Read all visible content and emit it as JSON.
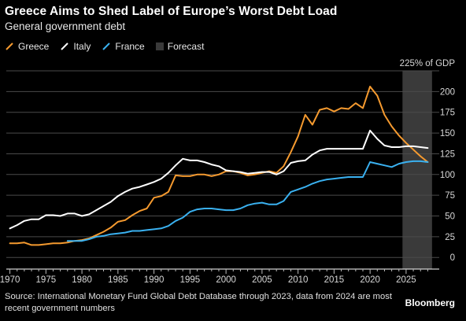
{
  "header": {
    "title": "Greece Aims to Shed Label of Europe’s Worst Debt Load",
    "subtitle": "General government debt"
  },
  "legend": [
    {
      "label": "Greece",
      "color": "#f59a2f",
      "kind": "line"
    },
    {
      "label": "Italy",
      "color": "#ffffff",
      "kind": "line"
    },
    {
      "label": "France",
      "color": "#3ab1f0",
      "kind": "line"
    },
    {
      "label": "Forecast",
      "color": "#3a3a3a",
      "kind": "box"
    }
  ],
  "footer": {
    "source": "Source: International Monetary Fund Global Debt Database through 2023, data from 2024 are most recent government numbers",
    "brand": "Bloomberg"
  },
  "chart_data": {
    "type": "line",
    "x_ticks": [
      1970,
      1975,
      1980,
      1985,
      1990,
      1995,
      2000,
      2005,
      2010,
      2015,
      2020,
      2025
    ],
    "y_ticks": [
      0,
      25,
      50,
      75,
      100,
      125,
      150,
      175,
      200
    ],
    "y_top_label": "225% of GDP",
    "xlim": [
      1969.5,
      2029.6
    ],
    "ylim": [
      -14,
      225
    ],
    "grid": "horizontal",
    "forecast_range": [
      2024.5,
      2028.6
    ],
    "series": [
      {
        "name": "Greece",
        "color": "#f59a2f",
        "x": [
          1970,
          1971,
          1972,
          1973,
          1974,
          1975,
          1976,
          1977,
          1978,
          1979,
          1980,
          1981,
          1982,
          1983,
          1984,
          1985,
          1986,
          1987,
          1988,
          1989,
          1990,
          1991,
          1992,
          1993,
          1994,
          1995,
          1996,
          1997,
          1998,
          1999,
          2000,
          2001,
          2002,
          2003,
          2004,
          2005,
          2006,
          2007,
          2008,
          2009,
          2010,
          2011,
          2012,
          2013,
          2014,
          2015,
          2016,
          2017,
          2018,
          2019,
          2020,
          2021,
          2022,
          2023,
          2024,
          2025,
          2026,
          2027,
          2028
        ],
        "y": [
          17,
          17,
          18,
          15,
          15,
          16,
          17,
          17,
          18,
          20,
          21,
          23,
          27,
          31,
          36,
          43,
          45,
          51,
          56,
          59,
          72,
          74,
          79,
          99,
          98,
          98,
          100,
          100,
          98,
          100,
          104,
          104,
          102,
          99,
          100,
          102,
          104,
          102,
          110,
          127,
          146,
          172,
          160,
          178,
          180,
          176,
          180,
          179,
          186,
          180,
          206,
          195,
          172,
          158,
          147,
          138,
          130,
          122,
          115
        ]
      },
      {
        "name": "Italy",
        "color": "#ffffff",
        "x": [
          1970,
          1971,
          1972,
          1973,
          1974,
          1975,
          1976,
          1977,
          1978,
          1979,
          1980,
          1981,
          1982,
          1983,
          1984,
          1985,
          1986,
          1987,
          1988,
          1989,
          1990,
          1991,
          1992,
          1993,
          1994,
          1995,
          1996,
          1997,
          1998,
          1999,
          2000,
          2001,
          2002,
          2003,
          2004,
          2005,
          2006,
          2007,
          2008,
          2009,
          2010,
          2011,
          2012,
          2013,
          2014,
          2015,
          2016,
          2017,
          2018,
          2019,
          2020,
          2021,
          2022,
          2023,
          2024,
          2025,
          2026,
          2027,
          2028
        ],
        "y": [
          35,
          39,
          44,
          46,
          46,
          51,
          51,
          50,
          53,
          53,
          50,
          52,
          57,
          62,
          67,
          74,
          79,
          83,
          85,
          88,
          91,
          95,
          102,
          111,
          119,
          117,
          117,
          115,
          112,
          110,
          105,
          104,
          103,
          101,
          102,
          103,
          103,
          100,
          104,
          114,
          116,
          117,
          124,
          129,
          131,
          131,
          131,
          131,
          131,
          131,
          153,
          143,
          135,
          133,
          133,
          134,
          134,
          133,
          132
        ]
      },
      {
        "name": "France",
        "color": "#3ab1f0",
        "x": [
          1978,
          1979,
          1980,
          1981,
          1982,
          1983,
          1984,
          1985,
          1986,
          1987,
          1988,
          1989,
          1990,
          1991,
          1992,
          1993,
          1994,
          1995,
          1996,
          1997,
          1998,
          1999,
          2000,
          2001,
          2002,
          2003,
          2004,
          2005,
          2006,
          2007,
          2008,
          2009,
          2010,
          2011,
          2012,
          2013,
          2014,
          2015,
          2016,
          2017,
          2018,
          2019,
          2020,
          2021,
          2022,
          2023,
          2024,
          2025,
          2026,
          2027,
          2028
        ],
        "y": [
          20,
          20,
          20,
          22,
          25,
          26,
          28,
          29,
          30,
          32,
          32,
          33,
          34,
          35,
          38,
          44,
          48,
          55,
          58,
          59,
          59,
          58,
          57,
          57,
          59,
          63,
          65,
          66,
          64,
          64,
          68,
          79,
          82,
          85,
          89,
          92,
          94,
          95,
          96,
          97,
          97,
          97,
          115,
          113,
          111,
          109,
          113,
          115,
          116,
          116,
          115
        ]
      }
    ]
  }
}
